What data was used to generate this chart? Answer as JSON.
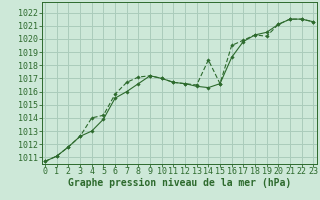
{
  "xlabel": "Graphe pression niveau de la mer (hPa)",
  "bg_color": "#cde8d8",
  "grid_color": "#aaccbb",
  "line_color": "#2d6a2d",
  "x_ticks": [
    0,
    1,
    2,
    3,
    4,
    5,
    6,
    7,
    8,
    9,
    10,
    11,
    12,
    13,
    14,
    15,
    16,
    17,
    18,
    19,
    20,
    21,
    22,
    23
  ],
  "ylim": [
    1010.5,
    1022.8
  ],
  "xlim": [
    -0.3,
    23.3
  ],
  "yticks": [
    1011,
    1012,
    1013,
    1014,
    1015,
    1016,
    1017,
    1018,
    1019,
    1020,
    1021,
    1022
  ],
  "line1_x": [
    0,
    1,
    2,
    3,
    4,
    5,
    6,
    7,
    8,
    9,
    10,
    11,
    12,
    13,
    14,
    15,
    16,
    17,
    18,
    19,
    20,
    21,
    22,
    23
  ],
  "line1_y": [
    1010.7,
    1011.1,
    1011.8,
    1012.6,
    1013.0,
    1013.9,
    1015.5,
    1016.0,
    1016.6,
    1017.2,
    1017.0,
    1016.7,
    1016.6,
    1016.4,
    1016.3,
    1016.6,
    1018.6,
    1019.8,
    1020.3,
    1020.5,
    1021.1,
    1021.5,
    1021.5,
    1021.3
  ],
  "line2_x": [
    0,
    1,
    2,
    3,
    4,
    5,
    6,
    7,
    8,
    9,
    10,
    11,
    12,
    13,
    14,
    15,
    16,
    17,
    18,
    19,
    20,
    21,
    22,
    23
  ],
  "line2_y": [
    1010.7,
    1011.1,
    1011.8,
    1012.6,
    1014.0,
    1014.2,
    1015.8,
    1016.7,
    1017.1,
    1017.2,
    1017.0,
    1016.7,
    1016.6,
    1016.5,
    1018.4,
    1016.6,
    1019.5,
    1019.9,
    1020.3,
    1020.2,
    1021.1,
    1021.5,
    1021.5,
    1021.3
  ],
  "xlabel_fontsize": 7,
  "tick_fontsize": 6
}
